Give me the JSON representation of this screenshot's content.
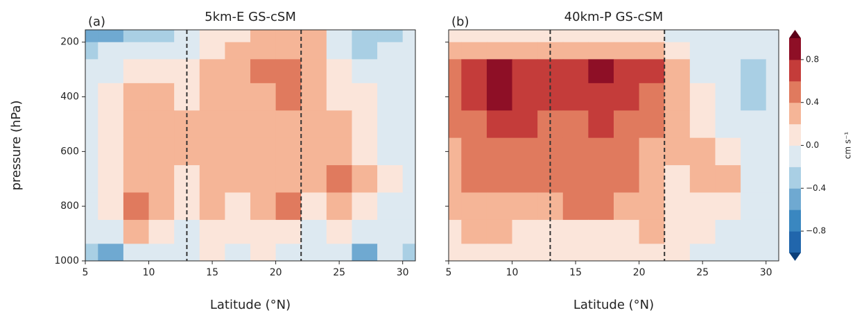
{
  "chart_data": [
    {
      "type": "contour",
      "panel": "(a)",
      "title": "5km-E GS-cSM",
      "xlabel": "Latitude (°N)",
      "ylabel": "pressure (hPa)",
      "xlim": [
        5,
        31
      ],
      "ylim": [
        1000,
        155
      ],
      "xticks": [
        5,
        10,
        15,
        20,
        25,
        30
      ],
      "yticks": [
        200,
        400,
        600,
        800,
        1000
      ],
      "vlines": [
        13,
        22
      ],
      "x": [
        5,
        7,
        9,
        11,
        13,
        15,
        17,
        19,
        21,
        23,
        25,
        27,
        29,
        31
      ],
      "y": [
        175,
        225,
        300,
        400,
        500,
        600,
        700,
        800,
        900,
        975
      ],
      "z": [
        [
          -0.5,
          -0.5,
          -0.3,
          -0.3,
          -0.1,
          0.1,
          0.1,
          0.3,
          0.3,
          0.3,
          -0.1,
          -0.3,
          -0.3,
          -0.1
        ],
        [
          -0.3,
          -0.1,
          -0.1,
          -0.1,
          -0.1,
          0.1,
          0.3,
          0.3,
          0.3,
          0.3,
          -0.1,
          -0.3,
          -0.1,
          -0.1
        ],
        [
          -0.1,
          -0.1,
          0.1,
          0.1,
          0.1,
          0.3,
          0.3,
          0.5,
          0.5,
          0.3,
          0.1,
          -0.1,
          -0.1,
          -0.1
        ],
        [
          -0.1,
          0.1,
          0.3,
          0.3,
          0.1,
          0.3,
          0.3,
          0.3,
          0.5,
          0.3,
          0.1,
          0.1,
          -0.1,
          -0.1
        ],
        [
          -0.1,
          0.1,
          0.3,
          0.3,
          0.3,
          0.3,
          0.3,
          0.3,
          0.3,
          0.3,
          0.3,
          0.1,
          -0.1,
          -0.1
        ],
        [
          -0.1,
          0.1,
          0.3,
          0.3,
          0.3,
          0.3,
          0.3,
          0.3,
          0.3,
          0.3,
          0.3,
          0.1,
          -0.1,
          -0.1
        ],
        [
          -0.1,
          0.1,
          0.3,
          0.3,
          0.1,
          0.3,
          0.3,
          0.3,
          0.3,
          0.3,
          0.5,
          0.3,
          0.1,
          -0.1
        ],
        [
          -0.1,
          0.1,
          0.5,
          0.3,
          0.1,
          0.3,
          0.1,
          0.3,
          0.5,
          0.1,
          0.3,
          0.1,
          -0.1,
          -0.1
        ],
        [
          -0.1,
          -0.1,
          0.3,
          0.1,
          -0.1,
          0.1,
          0.1,
          0.1,
          0.1,
          -0.1,
          0.1,
          -0.1,
          -0.1,
          -0.1
        ],
        [
          -0.3,
          -0.5,
          -0.1,
          -0.1,
          -0.1,
          0.1,
          -0.1,
          0.1,
          -0.1,
          -0.1,
          -0.1,
          -0.5,
          -0.1,
          -0.3
        ]
      ]
    },
    {
      "type": "contour",
      "panel": "(b)",
      "title": "40km-P GS-cSM",
      "xlabel": "Latitude (°N)",
      "xlim": [
        5,
        31
      ],
      "ylim": [
        1000,
        155
      ],
      "xticks": [
        5,
        10,
        15,
        20,
        25,
        30
      ],
      "yticks": [
        200,
        400,
        600,
        800,
        1000
      ],
      "vlines": [
        13,
        22
      ],
      "x": [
        5,
        7,
        9,
        11,
        13,
        15,
        17,
        19,
        21,
        23,
        25,
        27,
        29,
        31
      ],
      "y": [
        175,
        225,
        300,
        400,
        500,
        600,
        700,
        800,
        900,
        975
      ],
      "z": [
        [
          0.1,
          0.1,
          0.1,
          0.1,
          0.1,
          0.1,
          0.1,
          0.1,
          0.1,
          -0.1,
          -0.1,
          -0.1,
          -0.1,
          -0.1
        ],
        [
          0.3,
          0.3,
          0.3,
          0.3,
          0.3,
          0.3,
          0.3,
          0.3,
          0.3,
          0.1,
          -0.1,
          -0.1,
          -0.1,
          -0.1
        ],
        [
          0.5,
          0.7,
          0.9,
          0.7,
          0.7,
          0.7,
          0.9,
          0.7,
          0.7,
          0.3,
          -0.1,
          -0.1,
          -0.3,
          -0.1
        ],
        [
          0.5,
          0.7,
          0.9,
          0.7,
          0.7,
          0.7,
          0.7,
          0.7,
          0.5,
          0.3,
          0.1,
          -0.1,
          -0.3,
          -0.1
        ],
        [
          0.5,
          0.5,
          0.7,
          0.7,
          0.5,
          0.5,
          0.7,
          0.5,
          0.5,
          0.3,
          0.1,
          -0.1,
          -0.1,
          -0.1
        ],
        [
          0.3,
          0.5,
          0.5,
          0.5,
          0.5,
          0.5,
          0.5,
          0.5,
          0.3,
          0.3,
          0.3,
          0.1,
          -0.1,
          -0.1
        ],
        [
          0.3,
          0.5,
          0.5,
          0.5,
          0.5,
          0.5,
          0.5,
          0.5,
          0.3,
          0.1,
          0.3,
          0.3,
          -0.1,
          -0.1
        ],
        [
          0.3,
          0.3,
          0.3,
          0.3,
          0.3,
          0.5,
          0.5,
          0.3,
          0.3,
          0.1,
          0.1,
          0.1,
          -0.1,
          -0.1
        ],
        [
          0.1,
          0.3,
          0.3,
          0.1,
          0.1,
          0.1,
          0.1,
          0.1,
          0.3,
          0.1,
          0.1,
          -0.1,
          -0.1,
          -0.1
        ],
        [
          0.1,
          0.1,
          0.1,
          0.1,
          0.1,
          0.1,
          0.1,
          0.1,
          0.1,
          0.1,
          -0.1,
          -0.1,
          -0.1,
          -0.1
        ]
      ]
    },
    {
      "type": "colorbar",
      "label": "cm s⁻¹",
      "ylim": [
        -1,
        1
      ],
      "yticks": [
        {
          "value": -0.8,
          "label": "−0.8"
        },
        {
          "value": -0.4,
          "label": "−0.4"
        },
        {
          "value": 0,
          "label": "0.0"
        },
        0.4,
        0.8
      ],
      "levels": [
        -1,
        -0.8,
        -0.6,
        -0.4,
        -0.2,
        0,
        0.2,
        0.4,
        0.6,
        0.8,
        1
      ],
      "colors": [
        "#2166ac",
        "#3a87c0",
        "#6fa9d1",
        "#a9cfe4",
        "#dde9f1",
        "#fbe5da",
        "#f5b597",
        "#e07a5e",
        "#c43c3a",
        "#8e0f26"
      ],
      "under": "#0b3f7a",
      "over": "#5c0018"
    }
  ]
}
